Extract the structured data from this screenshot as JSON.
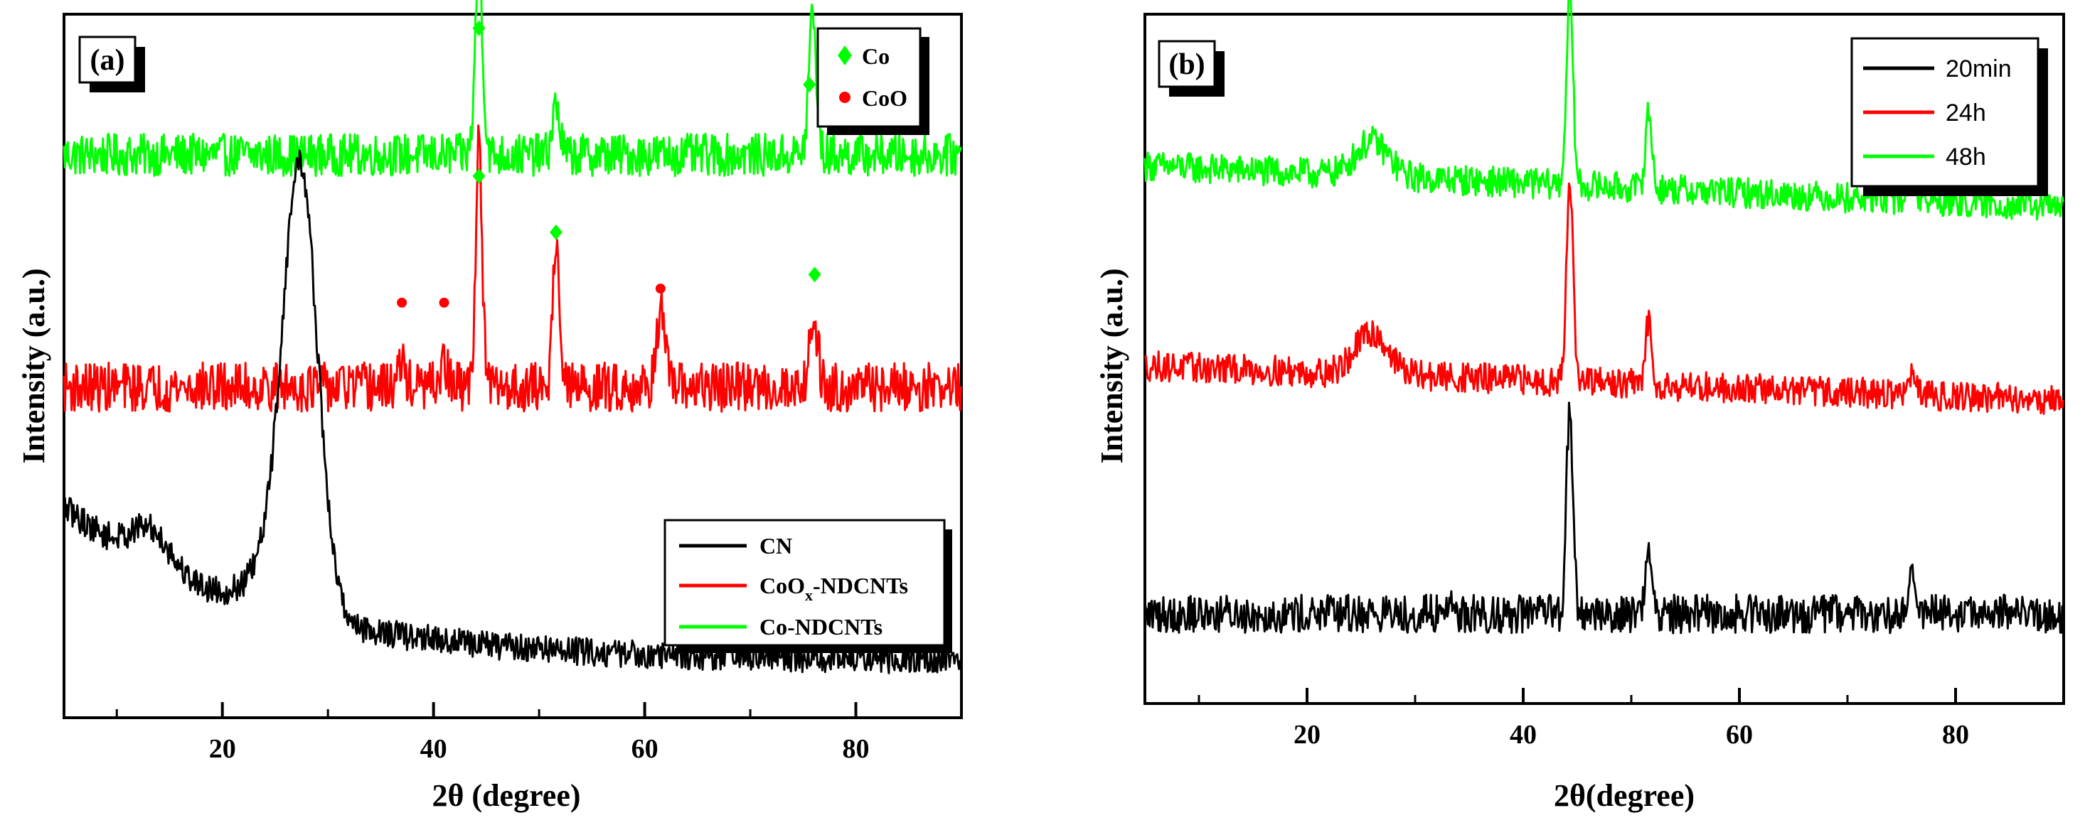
{
  "chart_data": [
    {
      "panel": "(a)",
      "type": "line",
      "xlabel": "2θ (degree)",
      "ylabel": "Intensity (a.u.)",
      "xlim": [
        5,
        90
      ],
      "xticks": [
        20,
        40,
        60,
        80
      ],
      "x_minor_ticks": [
        10,
        30,
        50,
        70,
        90
      ],
      "legend": {
        "position": "bottom-right",
        "entries": [
          {
            "name": "CN",
            "color": "#000000"
          },
          {
            "name_main": "CoO",
            "name_sub": "x",
            "name_tail": "-NDCNTs",
            "color": "#ff0000"
          },
          {
            "name": "Co-NDCNTs",
            "color": "#00ff00"
          }
        ]
      },
      "marker_legend": {
        "position": "top-right",
        "entries": [
          {
            "symbol": "diamond",
            "color": "#00ff00",
            "label": "Co"
          },
          {
            "symbol": "circle",
            "color": "#ff0000",
            "label": "CoO"
          }
        ]
      },
      "series": [
        {
          "name": "Co-NDCNTs",
          "color": "#00ff00",
          "baseline": 0.8,
          "noise": 0.03,
          "peaks": [
            [
              44.3,
              0.27,
              0.35
            ],
            [
              51.6,
              0.07,
              0.35
            ],
            [
              75.9,
              0.2,
              0.35
            ]
          ]
        },
        {
          "name": "CoOx-NDCNTs",
          "color": "#ff0000",
          "baseline": 0.47,
          "noise": 0.035,
          "peaks": [
            [
              44.3,
              0.35,
              0.3
            ],
            [
              51.6,
              0.22,
              0.3
            ],
            [
              61.5,
              0.11,
              0.4
            ],
            [
              76.0,
              0.1,
              0.4
            ],
            [
              37.0,
              0.03,
              0.4
            ],
            [
              41.0,
              0.03,
              0.4
            ]
          ]
        },
        {
          "name": "CN",
          "color": "#000000",
          "baseline": 0.08,
          "noise": 0.02,
          "broad": [
            [
              13.2,
              0.05,
              1.8
            ],
            [
              27.4,
              0.57,
              1.6
            ],
            [
              26.0,
              0.09,
              2.5
            ]
          ],
          "decay": {
            "start": 0.22,
            "end": 0.05
          }
        }
      ],
      "markers": [
        {
          "symbol": "diamond",
          "color": "#00ff00",
          "x": 44.3,
          "y": 0.98
        },
        {
          "symbol": "diamond",
          "color": "#00ff00",
          "x": 75.6,
          "y": 0.9
        },
        {
          "symbol": "diamond",
          "color": "#00ff00",
          "x": 44.3,
          "y": 0.77
        },
        {
          "symbol": "diamond",
          "color": "#00ff00",
          "x": 51.6,
          "y": 0.69
        },
        {
          "symbol": "diamond",
          "color": "#00ff00",
          "x": 76.1,
          "y": 0.63
        },
        {
          "symbol": "circle",
          "color": "#ff0000",
          "x": 37.0,
          "y": 0.59
        },
        {
          "symbol": "circle",
          "color": "#ff0000",
          "x": 41.0,
          "y": 0.59
        },
        {
          "symbol": "circle",
          "color": "#ff0000",
          "x": 61.5,
          "y": 0.61
        }
      ]
    },
    {
      "panel": "(b)",
      "type": "line",
      "xlabel": "2θ(degree)",
      "ylabel": "Intensity (a.u.)",
      "xlim": [
        5,
        90
      ],
      "xticks": [
        20,
        40,
        60,
        80
      ],
      "x_minor_ticks": [
        10,
        30,
        50,
        70,
        90
      ],
      "legend": {
        "position": "top-right",
        "entries": [
          {
            "name": "20min",
            "color": "#000000"
          },
          {
            "name": "24h",
            "color": "#ff0000"
          },
          {
            "name": "48h",
            "color": "#00ff00"
          }
        ]
      },
      "series": [
        {
          "name": "48h",
          "color": "#00ff00",
          "baseline": 0.78,
          "noise": 0.022,
          "trend": -0.06,
          "hump": [
            26.0,
            0.05,
            1.5
          ],
          "peaks": [
            [
              44.3,
              0.28,
              0.3
            ],
            [
              51.6,
              0.11,
              0.3
            ],
            [
              75.9,
              0.04,
              0.3
            ]
          ]
        },
        {
          "name": "24h",
          "color": "#ff0000",
          "baseline": 0.49,
          "noise": 0.022,
          "trend": -0.05,
          "hump": [
            26.0,
            0.06,
            1.5
          ],
          "peaks": [
            [
              44.3,
              0.3,
              0.3
            ],
            [
              51.6,
              0.09,
              0.3
            ],
            [
              75.9,
              0.03,
              0.3
            ]
          ]
        },
        {
          "name": "20min",
          "color": "#000000",
          "baseline": 0.13,
          "noise": 0.028,
          "trend": 0,
          "hump": null,
          "peaks": [
            [
              44.3,
              0.3,
              0.3
            ],
            [
              51.6,
              0.1,
              0.3
            ],
            [
              75.9,
              0.07,
              0.3
            ],
            [
              33.2,
              0.02,
              0.3
            ]
          ]
        }
      ]
    }
  ]
}
